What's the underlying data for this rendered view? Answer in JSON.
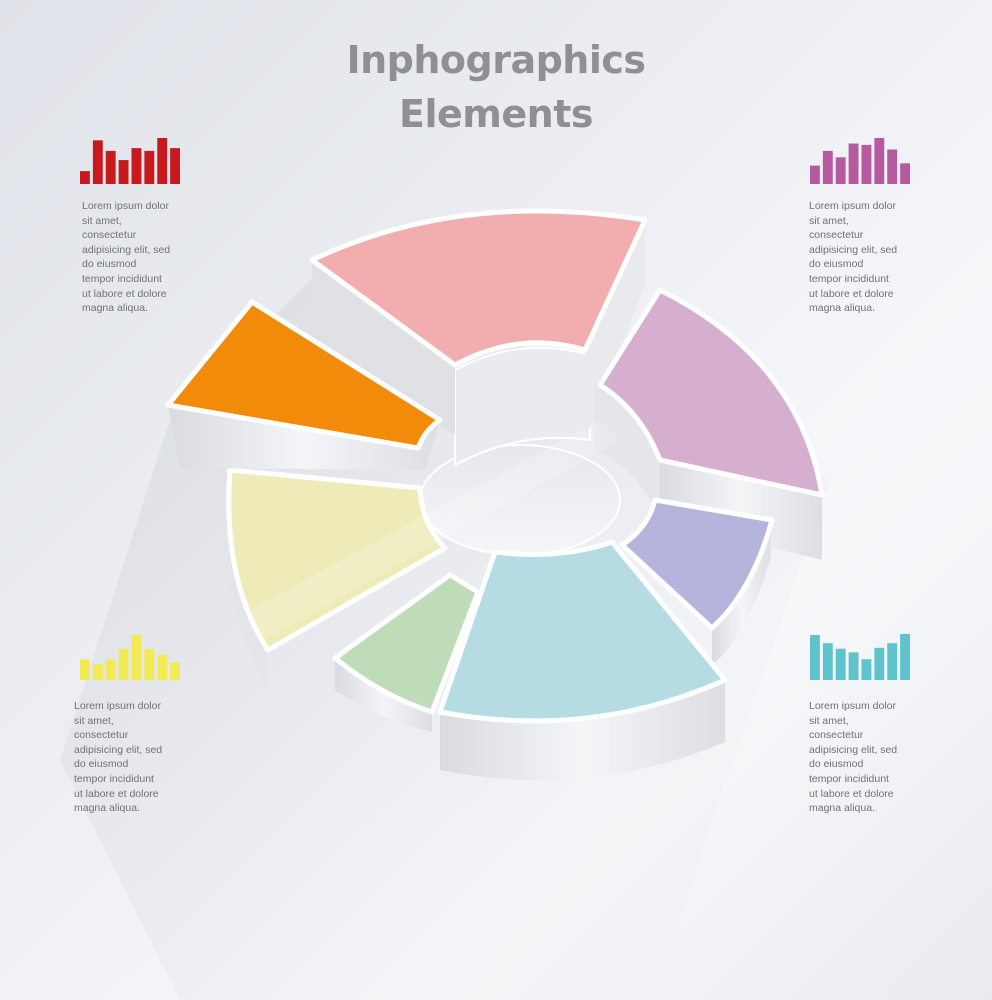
{
  "title": {
    "line1": "Inphographics",
    "line2": "Elements"
  },
  "colors": {
    "pink": "#f2aeae",
    "purple": "#d6aecf",
    "lavender": "#b4b4dc",
    "light_blue": "#b5dce3",
    "green": "#bfdcb8",
    "yellow": "#eeebb8",
    "orange": "#f28a0a",
    "red_bars": "#c8191e",
    "magenta_bars": "#b65aa0",
    "yellow_bars": "#f2ea55",
    "teal_bars": "#5ec3cc"
  },
  "segments": [
    {
      "name": "pink",
      "color": "#f2aeae"
    },
    {
      "name": "purple",
      "color": "#d6aecf"
    },
    {
      "name": "lavender",
      "color": "#b4b4dc"
    },
    {
      "name": "light-blue",
      "color": "#b5dce3"
    },
    {
      "name": "green",
      "color": "#bfdcb8"
    },
    {
      "name": "yellow",
      "color": "#eeebb8"
    },
    {
      "name": "orange",
      "color": "#f28a0a"
    }
  ],
  "blocks": [
    {
      "id": "top-left",
      "icon": "bar-chart-icon",
      "color": "#c8191e",
      "bars": [
        0.28,
        0.95,
        0.72,
        0.52,
        0.78,
        0.72,
        1.0,
        0.78
      ],
      "text": "Lorem  ipsum  dolor\nsit  amet,\nconsectetur\nadipisicing  elit,  sed\ndo  eiusmod\ntempor  incididunt\nut  labore  et  dolore\nmagna  aliqua."
    },
    {
      "id": "top-right",
      "icon": "bar-chart-icon",
      "color": "#b65aa0",
      "bars": [
        0.4,
        0.72,
        0.58,
        0.88,
        0.85,
        1.0,
        0.75,
        0.45
      ],
      "text": "Lorem  ipsum  dolor\nsit  amet,\nconsectetur\nadipisicing  elit,  sed\ndo  eiusmod\ntempor  incididunt\nut  labore  et  dolore\nmagna  aliqua."
    },
    {
      "id": "bottom-left",
      "icon": "bar-chart-icon",
      "color": "#f2ea55",
      "bars": [
        0.45,
        0.35,
        0.45,
        0.68,
        0.98,
        0.68,
        0.55,
        0.38
      ],
      "text": "Lorem  ipsum  dolor\nsit  amet,\nconsectetur\nadipisicing  elit,  sed\ndo  eiusmod\ntempor  incididunt\nut  labore  et  dolore\nmagna  aliqua."
    },
    {
      "id": "bottom-right",
      "icon": "bar-chart-icon",
      "color": "#5ec3cc",
      "bars": [
        0.98,
        0.8,
        0.68,
        0.6,
        0.45,
        0.7,
        0.8,
        1.0
      ],
      "text": "Lorem  ipsum  dolor\nsit  amet,\nconsectetur\nadipisicing  elit,  sed\ndo  eiusmod\ntempor  incididunt\nut  labore  et  dolore\nmagna  aliqua."
    }
  ]
}
